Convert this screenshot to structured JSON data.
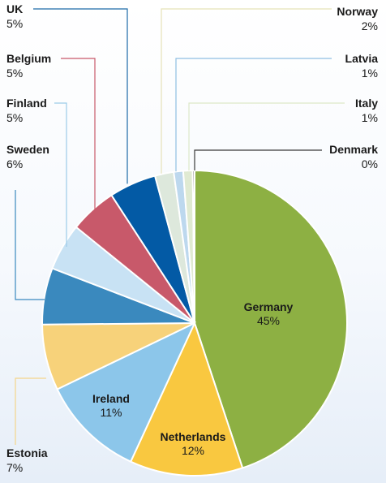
{
  "chart_data": {
    "type": "pie",
    "title": "",
    "slices": [
      {
        "name": "Germany",
        "label": "45%",
        "value": 45,
        "color": "#8db043"
      },
      {
        "name": "Netherlands",
        "label": "12%",
        "value": 12,
        "color": "#f9c840"
      },
      {
        "name": "Ireland",
        "label": "11%",
        "value": 11,
        "color": "#8cc6ea"
      },
      {
        "name": "Estonia",
        "label": "7%",
        "value": 7,
        "color": "#f7d27a"
      },
      {
        "name": "Sweden",
        "label": "6%",
        "value": 6,
        "color": "#3a89be"
      },
      {
        "name": "Finland",
        "label": "5%",
        "value": 5,
        "color": "#c8e2f4"
      },
      {
        "name": "Belgium",
        "label": "5%",
        "value": 5,
        "color": "#c8596a"
      },
      {
        "name": "UK",
        "label": "5%",
        "value": 5,
        "color": "#035aa5"
      },
      {
        "name": "Norway",
        "label": "2%",
        "value": 2,
        "color": "#dde8dc"
      },
      {
        "name": "Latvia",
        "label": "1%",
        "value": 1,
        "color": "#bdd8ee"
      },
      {
        "name": "Italy",
        "label": "1%",
        "value": 1,
        "color": "#e0ead2"
      },
      {
        "name": "Denmark",
        "label": "0%",
        "value": 0.2,
        "color": "#3a3a3a"
      }
    ],
    "legend": "callout labels around pie",
    "leader_colors": {
      "UK": "#1d6aa8",
      "Belgium": "#c8596a",
      "Finland": "#9ccbe8",
      "Sweden": "#3a89be",
      "Estonia": "#f4d58a",
      "Norway": "#e6e2b8",
      "Latvia": "#8fbfe2",
      "Italy": "#dde8c8",
      "Denmark": "#3a3a3a"
    }
  }
}
